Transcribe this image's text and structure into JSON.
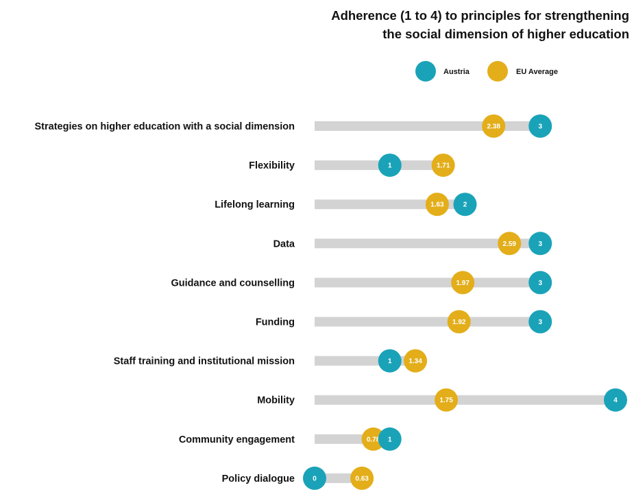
{
  "chart_data": {
    "type": "dot-plot",
    "title_lines": [
      "Adherence (1 to 4) to principles for strengthening",
      "the social dimension of higher education"
    ],
    "xlim": [
      0,
      4
    ],
    "grid": false,
    "legend_position": "top-right",
    "categories": [
      "Strategies on higher education with a social dimension",
      "Flexibility",
      "Lifelong learning",
      "Data",
      "Guidance and counselling",
      "Funding",
      "Staff training and institutional mission",
      "Mobility",
      "Community engagement",
      "Policy dialogue"
    ],
    "series": [
      {
        "name": "Austria",
        "color": "#1aa3b8",
        "values": [
          3,
          1,
          2,
          3,
          3,
          3,
          1,
          4,
          1,
          0
        ],
        "labels": [
          "3",
          "1",
          "2",
          "3",
          "3",
          "3",
          "1",
          "4",
          "1",
          "0"
        ]
      },
      {
        "name": "EU Average",
        "color": "#e3ae1a",
        "values": [
          2.38,
          1.71,
          1.63,
          2.59,
          1.97,
          1.92,
          1.34,
          1.75,
          0.78,
          0.63
        ],
        "labels": [
          "2.38",
          "1.71",
          "1.63",
          "2.59",
          "1.97",
          "1.92",
          "1.34",
          "1.75",
          "0.78",
          "0.63"
        ]
      }
    ],
    "track_color": "#d3d3d3"
  }
}
